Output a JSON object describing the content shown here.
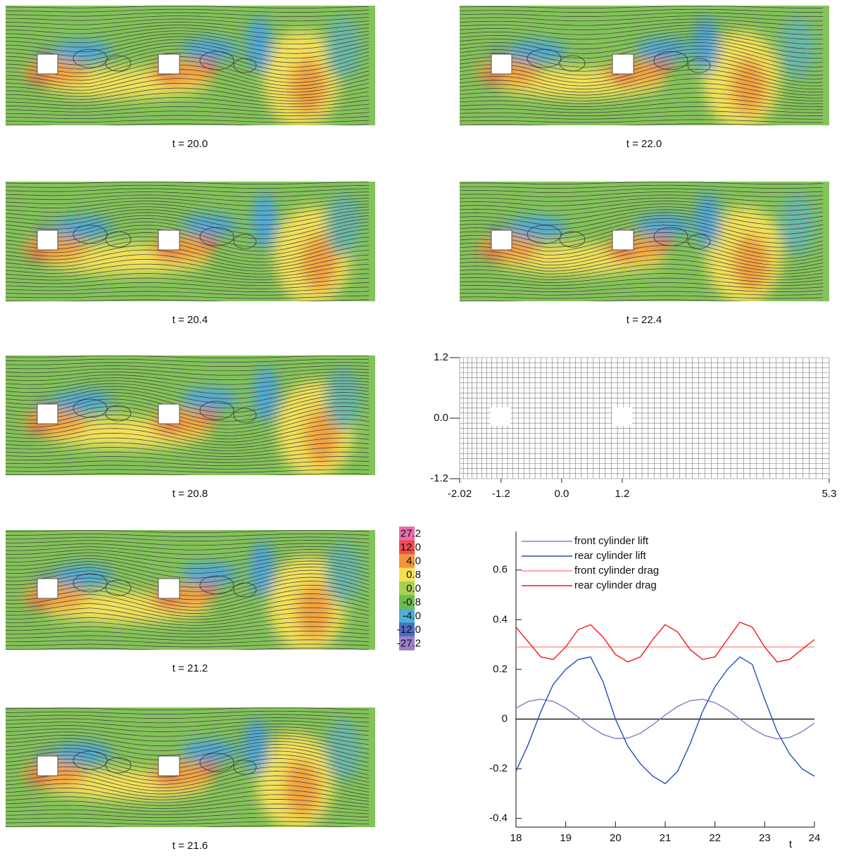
{
  "snapshots": [
    "t = 20.0",
    "t = 20.4",
    "t = 20.8",
    "t = 21.2",
    "t = 21.6",
    "t = 22.0",
    "t = 22.4"
  ],
  "mesh": {
    "xlim": [
      -2.02,
      5.3
    ],
    "ylim": [
      -1.2,
      1.2
    ],
    "xticks": [
      -2.02,
      -1.2,
      {
        "value": 0,
        "label": "0.0"
      },
      1.2,
      5.3
    ],
    "yticks": [
      1.2,
      {
        "value": 0,
        "label": "0.0"
      },
      -1.2
    ]
  },
  "colorbar": {
    "labels": [
      27.2,
      {
        "value": 12,
        "label": "12.0"
      },
      {
        "value": 4,
        "label": "4.0"
      },
      0.8,
      {
        "value": 0,
        "label": "0.0"
      },
      -0.8,
      {
        "value": -4,
        "label": "-4.0"
      },
      {
        "value": -12,
        "label": "-12.0"
      },
      -27.2
    ],
    "colors": [
      "#e86cb0",
      "#f04c4c",
      "#f5923c",
      "#f5e050",
      "#a8d050",
      "#6cbc4c",
      "#4cb0d8",
      "#4c6cc8",
      "#9c80c8"
    ]
  },
  "chart_data": {
    "type": "line",
    "xlabel": "t",
    "x": [
      18,
      18.25,
      18.5,
      18.75,
      19,
      19.25,
      19.5,
      19.75,
      20,
      20.25,
      20.5,
      20.75,
      21,
      21.25,
      21.5,
      21.75,
      22,
      22.25,
      22.5,
      22.75,
      23,
      23.25,
      23.5,
      23.75,
      24
    ],
    "xlim": [
      18,
      24
    ],
    "xticks": [
      18,
      19,
      20,
      21,
      22,
      23,
      24
    ],
    "ylim": [
      -0.435,
      0.755
    ],
    "yticks": [
      0.6,
      0.4,
      0.2,
      0,
      -0.2,
      -0.4
    ],
    "legend": "upper left",
    "series": [
      {
        "name": "front cylinder lift",
        "color": "#8878c8",
        "values": [
          0.044,
          0.071,
          0.08,
          0.071,
          0.044,
          0.008,
          -0.031,
          -0.062,
          -0.078,
          -0.077,
          -0.057,
          -0.023,
          0.016,
          0.051,
          0.074,
          0.08,
          0.066,
          0.038,
          0,
          -0.038,
          -0.066,
          -0.08,
          -0.074,
          -0.051,
          -0.016
        ]
      },
      {
        "name": "rear cylinder lift",
        "color": "#2050b0",
        "values": [
          -0.21,
          -0.1,
          0.03,
          0.14,
          0.2,
          0.24,
          0.25,
          0.15,
          0,
          -0.11,
          -0.18,
          -0.23,
          -0.26,
          -0.21,
          -0.1,
          0.03,
          0.13,
          0.2,
          0.25,
          0.22,
          0.08,
          -0.05,
          -0.14,
          -0.2,
          -0.23
        ]
      },
      {
        "name": "front cylinder drag",
        "color": "#ff8c8c",
        "values": [
          0.29,
          0.29,
          0.29,
          0.29,
          0.29,
          0.29,
          0.29,
          0.29,
          0.29,
          0.29,
          0.29,
          0.29,
          0.29,
          0.29,
          0.29,
          0.29,
          0.29,
          0.29,
          0.29,
          0.29,
          0.29,
          0.29,
          0.29,
          0.29,
          0.29
        ]
      },
      {
        "name": "rear cylinder drag",
        "color": "#f01818",
        "values": [
          0.37,
          0.31,
          0.25,
          0.24,
          0.29,
          0.36,
          0.38,
          0.33,
          0.26,
          0.23,
          0.25,
          0.32,
          0.38,
          0.35,
          0.28,
          0.24,
          0.25,
          0.32,
          0.39,
          0.37,
          0.29,
          0.23,
          0.24,
          0.28,
          0.32
        ]
      }
    ]
  }
}
